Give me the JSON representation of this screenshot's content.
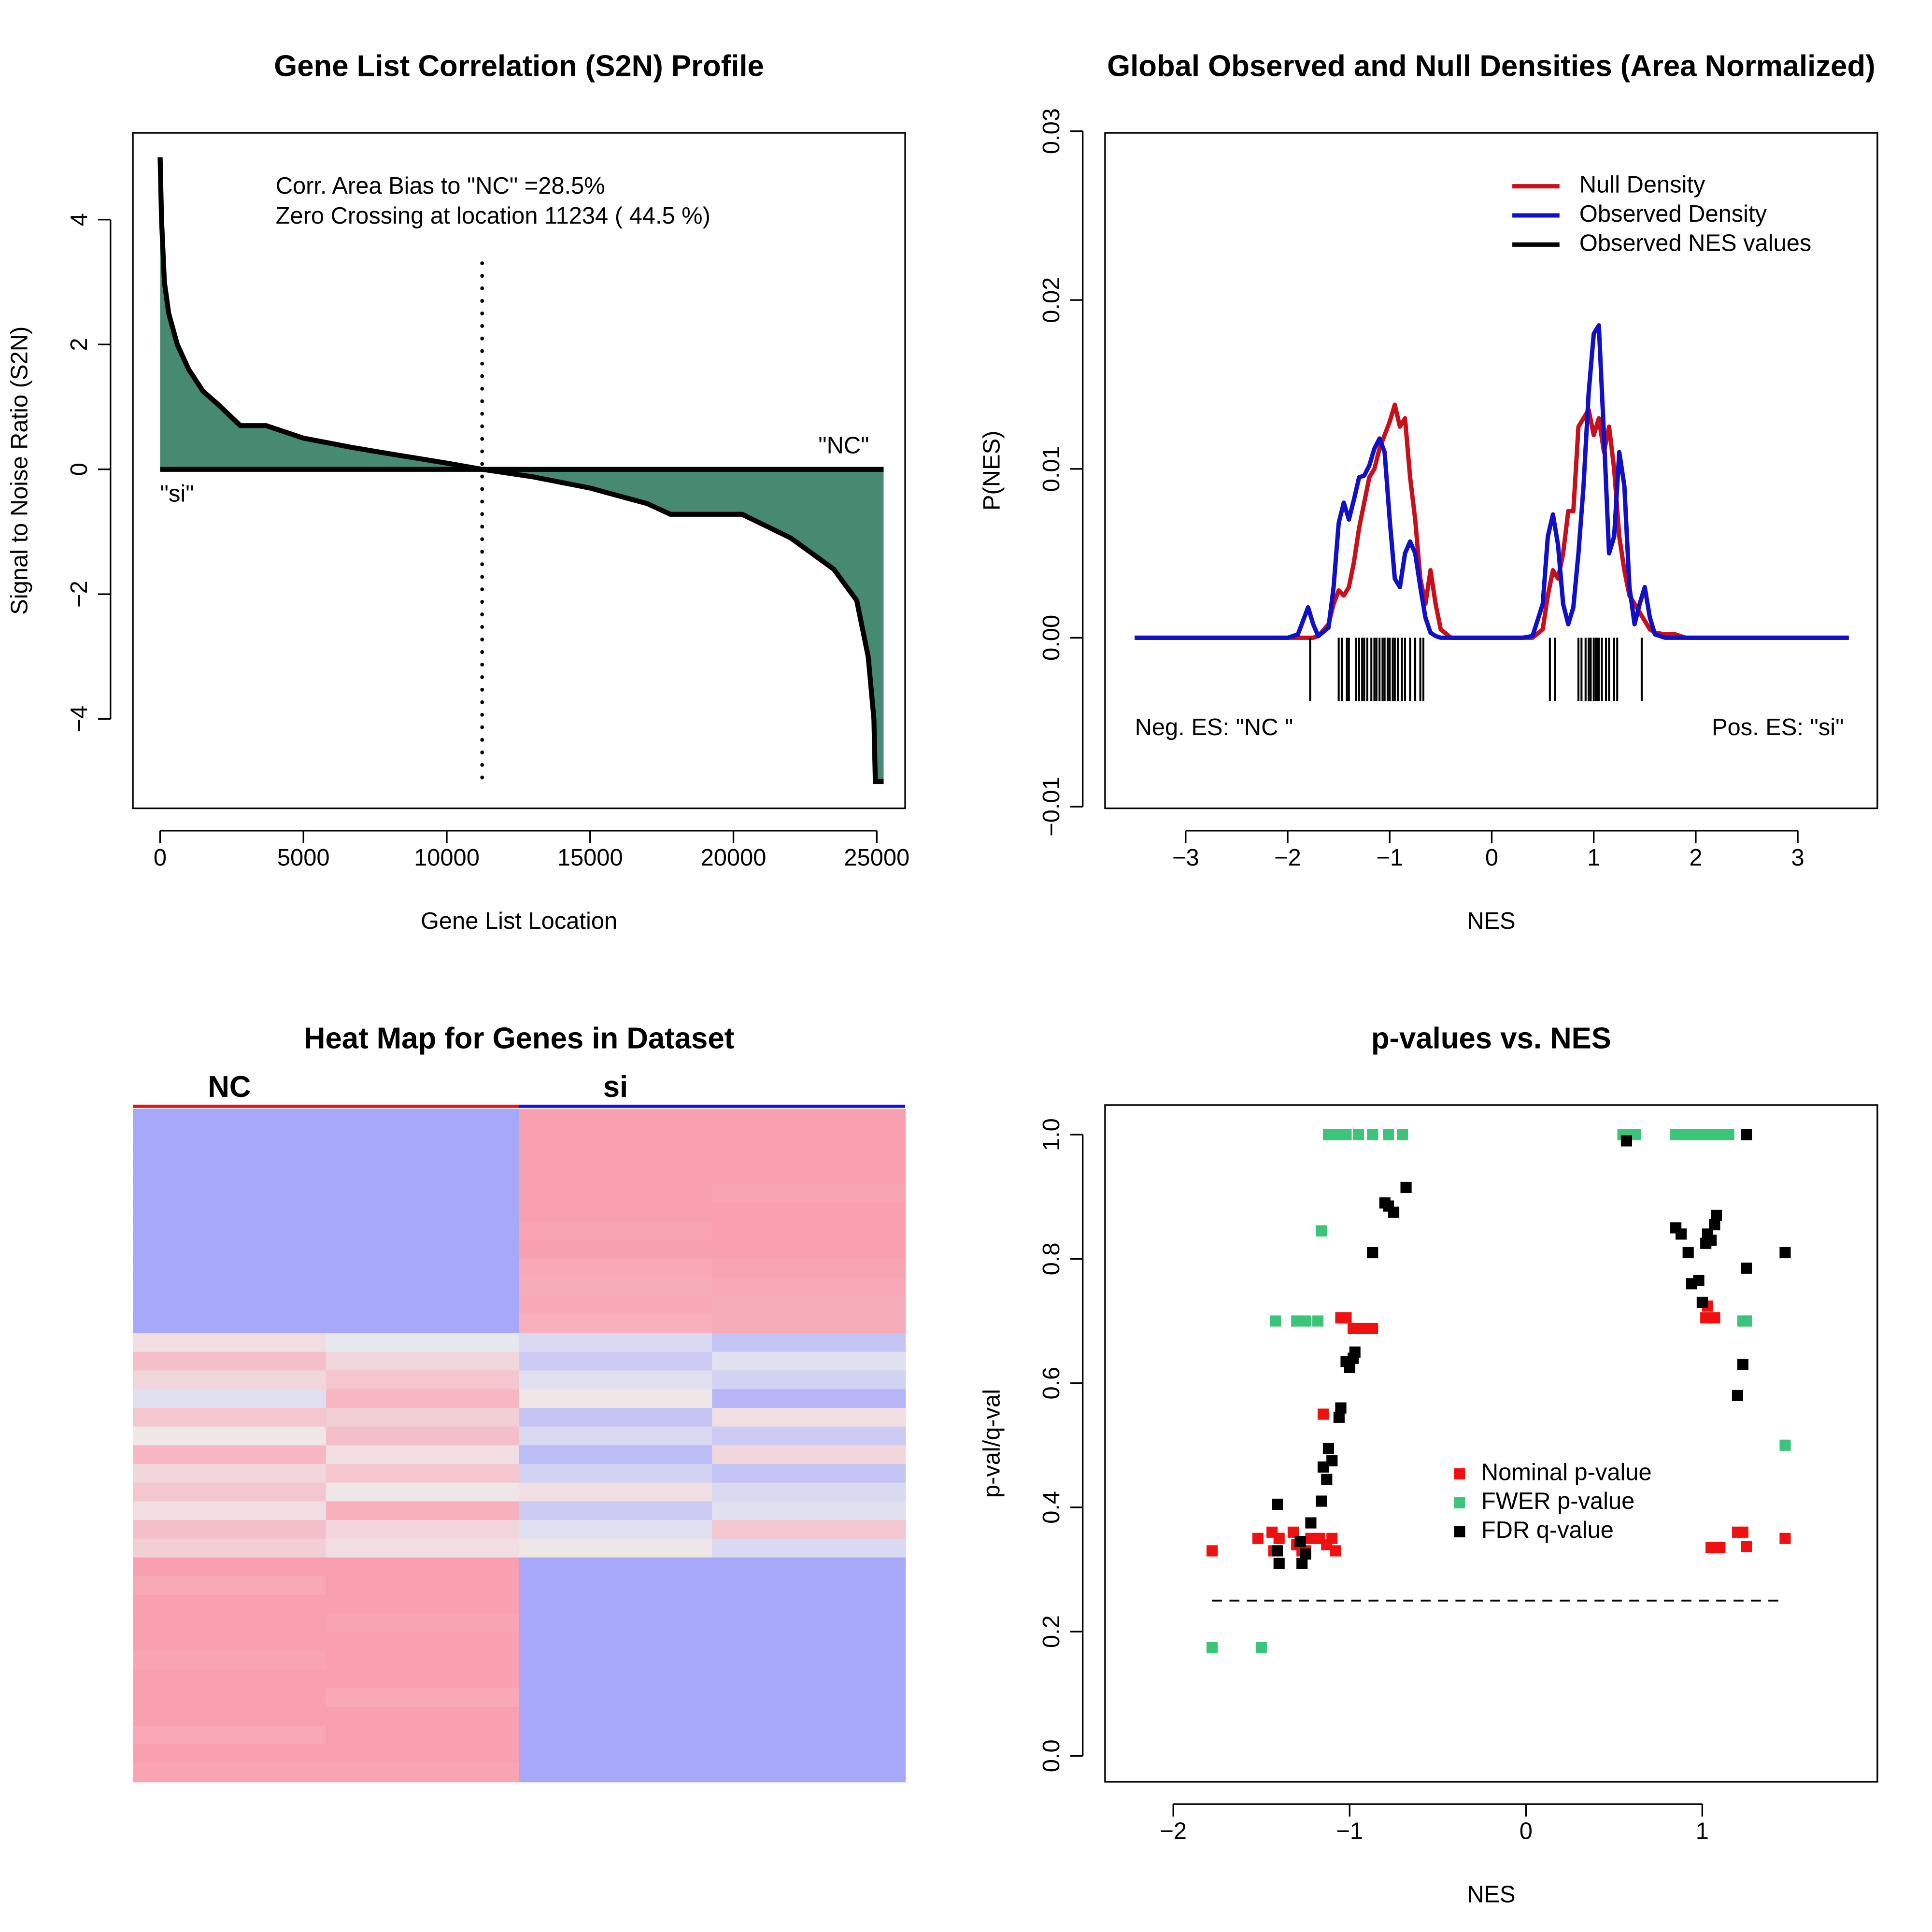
{
  "chart_data": [
    {
      "type": "area",
      "title": "Gene List Correlation (S2N) Profile",
      "x_label": "Gene List Location",
      "y_label": "Signal to Noise Ratio (S2N)",
      "x": [
        1,
        50,
        150,
        300,
        600,
        1000,
        1500,
        2000,
        2800,
        3700,
        5000,
        6700,
        8000,
        10000,
        11234,
        13000,
        15000,
        17000,
        17800,
        20300,
        22000,
        23500,
        24300,
        24700,
        24900,
        24950,
        25239
      ],
      "values": [
        5.0,
        4.0,
        3.0,
        2.5,
        2.0,
        1.6,
        1.25,
        1.05,
        0.7,
        0.7,
        0.5,
        0.35,
        0.25,
        0.1,
        0,
        -0.12,
        -0.3,
        -0.55,
        -0.72,
        -0.72,
        -1.1,
        -1.6,
        -2.1,
        -3.0,
        -4.0,
        -5.0,
        -5.0
      ],
      "color": "#468b71",
      "xlim": [
        -950,
        25990
      ],
      "ylim": [
        -5.43,
        5.39
      ],
      "xticks": [
        0,
        5000,
        10000,
        15000,
        20000,
        25000
      ],
      "yticks": [
        {
          "value": -4,
          "label": "−4"
        },
        {
          "value": -2,
          "label": "−2"
        },
        0,
        2,
        4
      ],
      "zero_crossing": 11234,
      "annotations": [
        "Corr. Area Bias to \"NC\" =28.5%",
        "Zero Crossing at location  11234  ( 44.5  %)",
        "\"NC\"",
        "\"si\""
      ]
    },
    {
      "type": "line",
      "title": "Global Observed and Null Densities (Area Normalized)",
      "x_label": "NES",
      "y_label": "P(NES)",
      "x": [
        -3.5,
        -2.0,
        -1.9,
        -1.85,
        -1.8,
        -1.75,
        -1.7,
        -1.6,
        -1.55,
        -1.5,
        -1.45,
        -1.4,
        -1.35,
        -1.3,
        -1.25,
        -1.2,
        -1.15,
        -1.1,
        -1.05,
        -1.0,
        -0.95,
        -0.9,
        -0.85,
        -0.8,
        -0.75,
        -0.7,
        -0.65,
        -0.6,
        -0.55,
        -0.5,
        -0.4,
        -0.3,
        0.3,
        0.4,
        0.5,
        0.55,
        0.6,
        0.65,
        0.7,
        0.75,
        0.8,
        0.85,
        0.9,
        0.95,
        1.0,
        1.05,
        1.1,
        1.15,
        1.2,
        1.25,
        1.3,
        1.35,
        1.4,
        1.45,
        1.5,
        1.55,
        1.6,
        1.7,
        1.8,
        1.9,
        2.0,
        3.5
      ],
      "series": [
        {
          "name": "Null Density",
          "color": "#c8101a",
          "values": [
            0,
            0,
            0,
            0,
            0,
            0,
            0.0001,
            0.0008,
            0.002,
            0.0028,
            0.0025,
            0.003,
            0.0045,
            0.0065,
            0.008,
            0.0095,
            0.01,
            0.0112,
            0.012,
            0.0128,
            0.0138,
            0.0125,
            0.013,
            0.0095,
            0.007,
            0.0035,
            0.002,
            0.004,
            0.002,
            0.0005,
            0,
            0,
            0,
            0,
            0.0005,
            0.0025,
            0.004,
            0.0035,
            0.005,
            0.0075,
            0.0075,
            0.0125,
            0.013,
            0.0135,
            0.012,
            0.013,
            0.011,
            0.0125,
            0.01,
            0.006,
            0.004,
            0.0025,
            0.002,
            0.0015,
            0.001,
            0.0005,
            0.0003,
            0.0002,
            0.0002,
            0,
            0,
            0
          ]
        },
        {
          "name": "Observed Density",
          "color": "#1010c8",
          "values": [
            0,
            0,
            0.0002,
            0.001,
            0.0018,
            0.0008,
            0.0001,
            0.0006,
            0.003,
            0.0068,
            0.008,
            0.007,
            0.0082,
            0.0095,
            0.0096,
            0.0102,
            0.0112,
            0.0118,
            0.011,
            0.007,
            0.0035,
            0.003,
            0.005,
            0.0057,
            0.005,
            0.003,
            0.0012,
            0.0003,
            0.0001,
            0,
            0,
            0,
            0,
            0.0001,
            0.002,
            0.006,
            0.0073,
            0.0055,
            0.002,
            0.0008,
            0.0018,
            0.005,
            0.009,
            0.0145,
            0.018,
            0.0185,
            0.012,
            0.005,
            0.006,
            0.011,
            0.009,
            0.003,
            0.0008,
            0.002,
            0.003,
            0.0012,
            0.0002,
            0,
            0,
            0,
            0,
            0
          ]
        }
      ],
      "rug": {
        "name": "Observed NES values",
        "color": "#000000",
        "x": [
          -1.78,
          -1.5,
          -1.47,
          -1.42,
          -1.4,
          -1.33,
          -1.3,
          -1.27,
          -1.25,
          -1.22,
          -1.18,
          -1.15,
          -1.13,
          -1.1,
          -1.07,
          -1.05,
          -1.02,
          -1.0,
          -0.97,
          -0.95,
          -0.92,
          -0.88,
          -0.85,
          -0.8,
          -0.75,
          -0.7,
          -0.67,
          0.57,
          0.62,
          0.85,
          0.88,
          0.92,
          0.95,
          0.97,
          1.0,
          1.02,
          1.03,
          1.05,
          1.08,
          1.12,
          1.15,
          1.2,
          1.23,
          1.47
        ]
      },
      "xlim": [
        -3.79,
        3.78
      ],
      "ylim": [
        -0.0101,
        0.0299
      ],
      "xticks": [
        {
          "value": -3,
          "label": "−3"
        },
        {
          "value": -2,
          "label": "−2"
        },
        {
          "value": -1,
          "label": "−1"
        },
        0,
        1,
        2,
        3
      ],
      "yticks": [
        {
          "value": -0.01,
          "label": "−0.01"
        },
        {
          "value": 0,
          "label": "0.00"
        },
        0.01,
        0.02,
        0.03
      ],
      "annotations": [
        "Neg. ES: \"NC \"",
        "Pos. ES: \"si\""
      ]
    },
    {
      "type": "heatmap",
      "title": "Heat Map for Genes in Dataset",
      "groups": [
        {
          "name": "NC",
          "color": "#e8101a"
        },
        {
          "name": "si",
          "color": "#1010e8"
        }
      ],
      "colors": [
        "#a8a8fa",
        "#eeeeee",
        "#f9a0b0"
      ],
      "values": [
        [
          -1,
          -1,
          1,
          1
        ],
        [
          -1,
          -1,
          1,
          1
        ],
        [
          -1,
          -1,
          1,
          1
        ],
        [
          -1,
          -1,
          1,
          1
        ],
        [
          -1,
          -1,
          1,
          0.95
        ],
        [
          -1,
          -1,
          1,
          1
        ],
        [
          -1,
          -1,
          0.95,
          1
        ],
        [
          -1,
          -1,
          1,
          1
        ],
        [
          -1,
          -1,
          0.9,
          0.95
        ],
        [
          -1,
          -1,
          0.85,
          0.9
        ],
        [
          -1,
          -1,
          0.9,
          0.85
        ],
        [
          -1,
          -1,
          0.8,
          0.85
        ],
        [
          0.2,
          -0.1,
          -0.3,
          -0.6
        ],
        [
          0.6,
          0.3,
          -0.5,
          -0.2
        ],
        [
          0.3,
          0.5,
          -0.2,
          -0.4
        ],
        [
          -0.2,
          0.7,
          0.1,
          -0.8
        ],
        [
          0.5,
          0.4,
          -0.6,
          0.2
        ],
        [
          0.1,
          0.6,
          -0.3,
          -0.5
        ],
        [
          0.7,
          0.2,
          -0.7,
          0.3
        ],
        [
          0.3,
          0.5,
          -0.4,
          -0.6
        ],
        [
          0.5,
          0.1,
          0.2,
          -0.3
        ],
        [
          0.2,
          0.8,
          -0.5,
          -0.2
        ],
        [
          0.6,
          0.3,
          -0.2,
          0.5
        ],
        [
          0.4,
          0.2,
          0.1,
          -0.3
        ],
        [
          1,
          1,
          -1,
          -1
        ],
        [
          0.9,
          1,
          -1,
          -1
        ],
        [
          1,
          1,
          -1,
          -1
        ],
        [
          1,
          0.95,
          -1,
          -1
        ],
        [
          1,
          1,
          -1,
          -1
        ],
        [
          0.95,
          1,
          -1,
          -1
        ],
        [
          1,
          1,
          -1,
          -1
        ],
        [
          1,
          0.9,
          -1,
          -1
        ],
        [
          1,
          1,
          -1,
          -1
        ],
        [
          0.9,
          1,
          -1,
          -1
        ],
        [
          1,
          1,
          -1,
          -1
        ],
        [
          0.95,
          0.95,
          -1,
          -1
        ]
      ]
    },
    {
      "type": "scatter",
      "title": "p-values vs. NES",
      "x_label": "NES",
      "y_label": "p-val/q-val",
      "series": [
        {
          "name": "Nominal p-value",
          "color": "#f01010",
          "x": [
            -1.78,
            -1.52,
            -1.44,
            -1.43,
            -1.4,
            -1.32,
            -1.3,
            -1.27,
            -1.25,
            -1.22,
            -1.17,
            -1.15,
            -1.13,
            -1.1,
            -1.08,
            -1.05,
            -1.02,
            -0.98,
            -0.93,
            -0.87,
            1.02,
            1.03,
            1.05,
            1.07,
            1.08,
            1.1,
            1.2,
            1.23,
            1.25,
            1.47
          ],
          "values": [
            0.33,
            0.35,
            0.36,
            0.33,
            0.35,
            0.36,
            0.34,
            0.33,
            0.33,
            0.35,
            0.35,
            0.55,
            0.34,
            0.35,
            0.33,
            0.705,
            0.705,
            0.688,
            0.688,
            0.688,
            0.705,
            0.724,
            0.335,
            0.705,
            0.335,
            0.335,
            0.36,
            0.36,
            0.337,
            0.35
          ]
        },
        {
          "name": "FWER p-value",
          "color": "#3cc47a",
          "x": [
            -1.78,
            -1.5,
            -1.42,
            -1.3,
            -1.25,
            -1.18,
            -1.16,
            -1.12,
            -1.08,
            -1.02,
            -0.95,
            -0.87,
            -0.78,
            -0.7,
            0.55,
            0.58,
            0.62,
            0.85,
            0.9,
            0.95,
            1.0,
            1.05,
            1.1,
            1.15,
            1.23,
            1.25,
            1.47
          ],
          "values": [
            0.174,
            0.174,
            0.7,
            0.7,
            0.7,
            0.7,
            0.845,
            1,
            1,
            1,
            1,
            1,
            1,
            1,
            1,
            1,
            1,
            1,
            1,
            1,
            1,
            1,
            1,
            1,
            0.7,
            0.7,
            0.5
          ]
        },
        {
          "name": "FDR q-value",
          "color": "#000000",
          "x": [
            -1.41,
            -1.41,
            -1.4,
            -1.28,
            -1.27,
            -1.25,
            -1.22,
            -1.16,
            -1.15,
            -1.13,
            -1.12,
            -1.1,
            -1.06,
            -1.05,
            -1.02,
            -1.0,
            -0.98,
            -0.97,
            -0.87,
            -0.8,
            -0.78,
            -0.75,
            -0.68,
            0.57,
            0.85,
            0.88,
            0.92,
            0.94,
            0.98,
            1.0,
            1.02,
            1.03,
            1.05,
            1.07,
            1.08,
            1.2,
            1.23,
            1.25,
            1.25,
            1.47
          ],
          "values": [
            0.405,
            0.33,
            0.31,
            0.345,
            0.31,
            0.325,
            0.375,
            0.41,
            0.465,
            0.445,
            0.495,
            0.475,
            0.545,
            0.56,
            0.635,
            0.625,
            0.64,
            0.65,
            0.81,
            0.89,
            0.885,
            0.875,
            0.915,
            0.99,
            0.85,
            0.84,
            0.81,
            0.76,
            0.765,
            0.73,
            0.825,
            0.84,
            0.83,
            0.855,
            0.87,
            0.58,
            0.63,
            0.785,
            1,
            0.81
          ]
        }
      ],
      "threshold": 0.25,
      "xlim": [
        -2.387,
        1.993
      ],
      "ylim": [
        -0.0417,
        1.0476
      ],
      "xticks": [
        {
          "value": -2,
          "label": "−2"
        },
        {
          "value": -1,
          "label": "−1"
        },
        0,
        1
      ],
      "yticks": [
        {
          "value": 0,
          "label": "0.0"
        },
        0.2,
        0.4,
        0.6,
        0.8,
        {
          "value": 1,
          "label": "1.0"
        }
      ]
    }
  ]
}
